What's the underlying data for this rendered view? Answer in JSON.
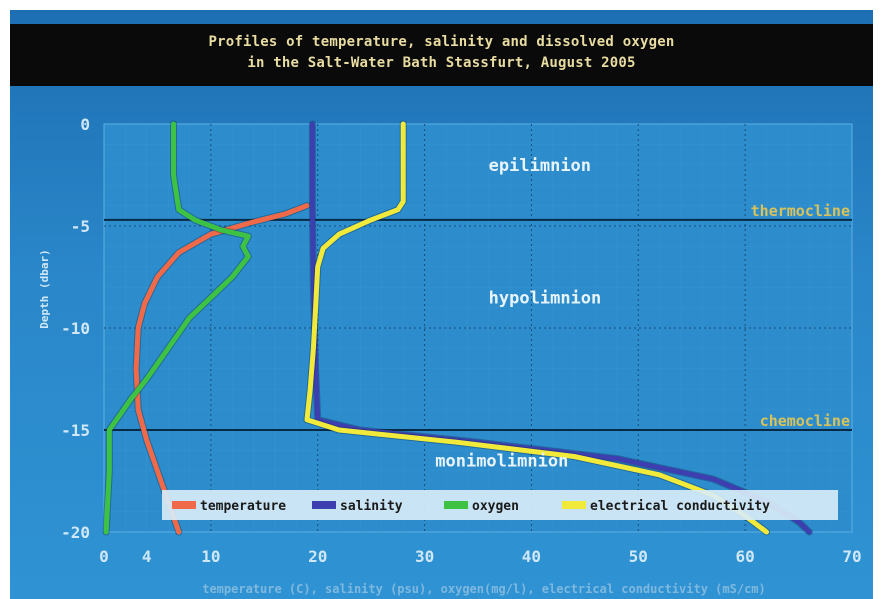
{
  "chart_data": {
    "type": "line",
    "title": [
      "Profiles of temperature, salinity and dissolved oxygen",
      "in the Salt-Water Bath Stassfurt, August 2005"
    ],
    "xlabel": "temperature (C), salinity (psu), oxygen(mg/l), electrical conductivity (mS/cm)",
    "ylabel": "Depth (dbar)",
    "xlim": [
      0,
      70
    ],
    "ylim": [
      -20,
      0
    ],
    "xticks": [
      0,
      4,
      10,
      20,
      30,
      40,
      50,
      60,
      70
    ],
    "yticks": [
      0,
      -5,
      -10,
      -15,
      -20
    ],
    "grid": true,
    "legend_position": "bottom",
    "layer_lines": [
      {
        "label": "thermocline",
        "depth": -4.7
      },
      {
        "label": "chemocline",
        "depth": -15.0
      }
    ],
    "layer_labels": [
      {
        "label": "epilimnion",
        "x": 36,
        "depth": -2.3
      },
      {
        "label": "hypolimnion",
        "x": 36,
        "depth": -8.8
      },
      {
        "label": "monimolimnion",
        "x": 31,
        "depth": -16.8
      }
    ],
    "series": [
      {
        "name": "temperature",
        "color": "#f06a4a",
        "points": [
          [
            19,
            -4
          ],
          [
            17,
            -4.4
          ],
          [
            14,
            -4.8
          ],
          [
            10,
            -5.4
          ],
          [
            7,
            -6.3
          ],
          [
            5,
            -7.5
          ],
          [
            3.8,
            -8.8
          ],
          [
            3.2,
            -10
          ],
          [
            3,
            -12
          ],
          [
            3.2,
            -14
          ],
          [
            4,
            -15.5
          ],
          [
            5,
            -17
          ],
          [
            6,
            -18.5
          ],
          [
            7,
            -20
          ]
        ]
      },
      {
        "name": "salinity",
        "color": "#3d3fb0",
        "points": [
          [
            19.5,
            0
          ],
          [
            19.5,
            -4
          ],
          [
            19.6,
            -8
          ],
          [
            19.8,
            -12
          ],
          [
            20,
            -14.5
          ],
          [
            24,
            -15
          ],
          [
            35,
            -15.6
          ],
          [
            48,
            -16.4
          ],
          [
            57,
            -17.4
          ],
          [
            62,
            -18.5
          ],
          [
            65,
            -19.5
          ],
          [
            66,
            -20
          ]
        ]
      },
      {
        "name": "oxygen",
        "color": "#3dc243",
        "points": [
          [
            6.5,
            0
          ],
          [
            6.5,
            -2.5
          ],
          [
            7,
            -4.2
          ],
          [
            8.5,
            -4.7
          ],
          [
            11,
            -5.2
          ],
          [
            13.5,
            -5.5
          ],
          [
            13,
            -6
          ],
          [
            13.5,
            -6.5
          ],
          [
            12,
            -7.5
          ],
          [
            10,
            -8.5
          ],
          [
            8,
            -9.5
          ],
          [
            6,
            -11
          ],
          [
            4,
            -12.5
          ],
          [
            2.5,
            -13.5
          ],
          [
            0.5,
            -15
          ],
          [
            0.5,
            -17
          ],
          [
            0.2,
            -20
          ]
        ]
      },
      {
        "name": "electrical conductivity",
        "color": "#f2ea3a",
        "points": [
          [
            28,
            0
          ],
          [
            28,
            -3.8
          ],
          [
            27.5,
            -4.2
          ],
          [
            25,
            -4.7
          ],
          [
            22,
            -5.4
          ],
          [
            20.5,
            -6.1
          ],
          [
            20,
            -7
          ],
          [
            19.8,
            -9
          ],
          [
            19.6,
            -11
          ],
          [
            19.3,
            -13
          ],
          [
            19,
            -14.5
          ],
          [
            22,
            -15
          ],
          [
            33,
            -15.6
          ],
          [
            44,
            -16.3
          ],
          [
            52,
            -17.2
          ],
          [
            57,
            -18.2
          ],
          [
            60,
            -19.2
          ],
          [
            62,
            -20
          ]
        ]
      }
    ]
  }
}
